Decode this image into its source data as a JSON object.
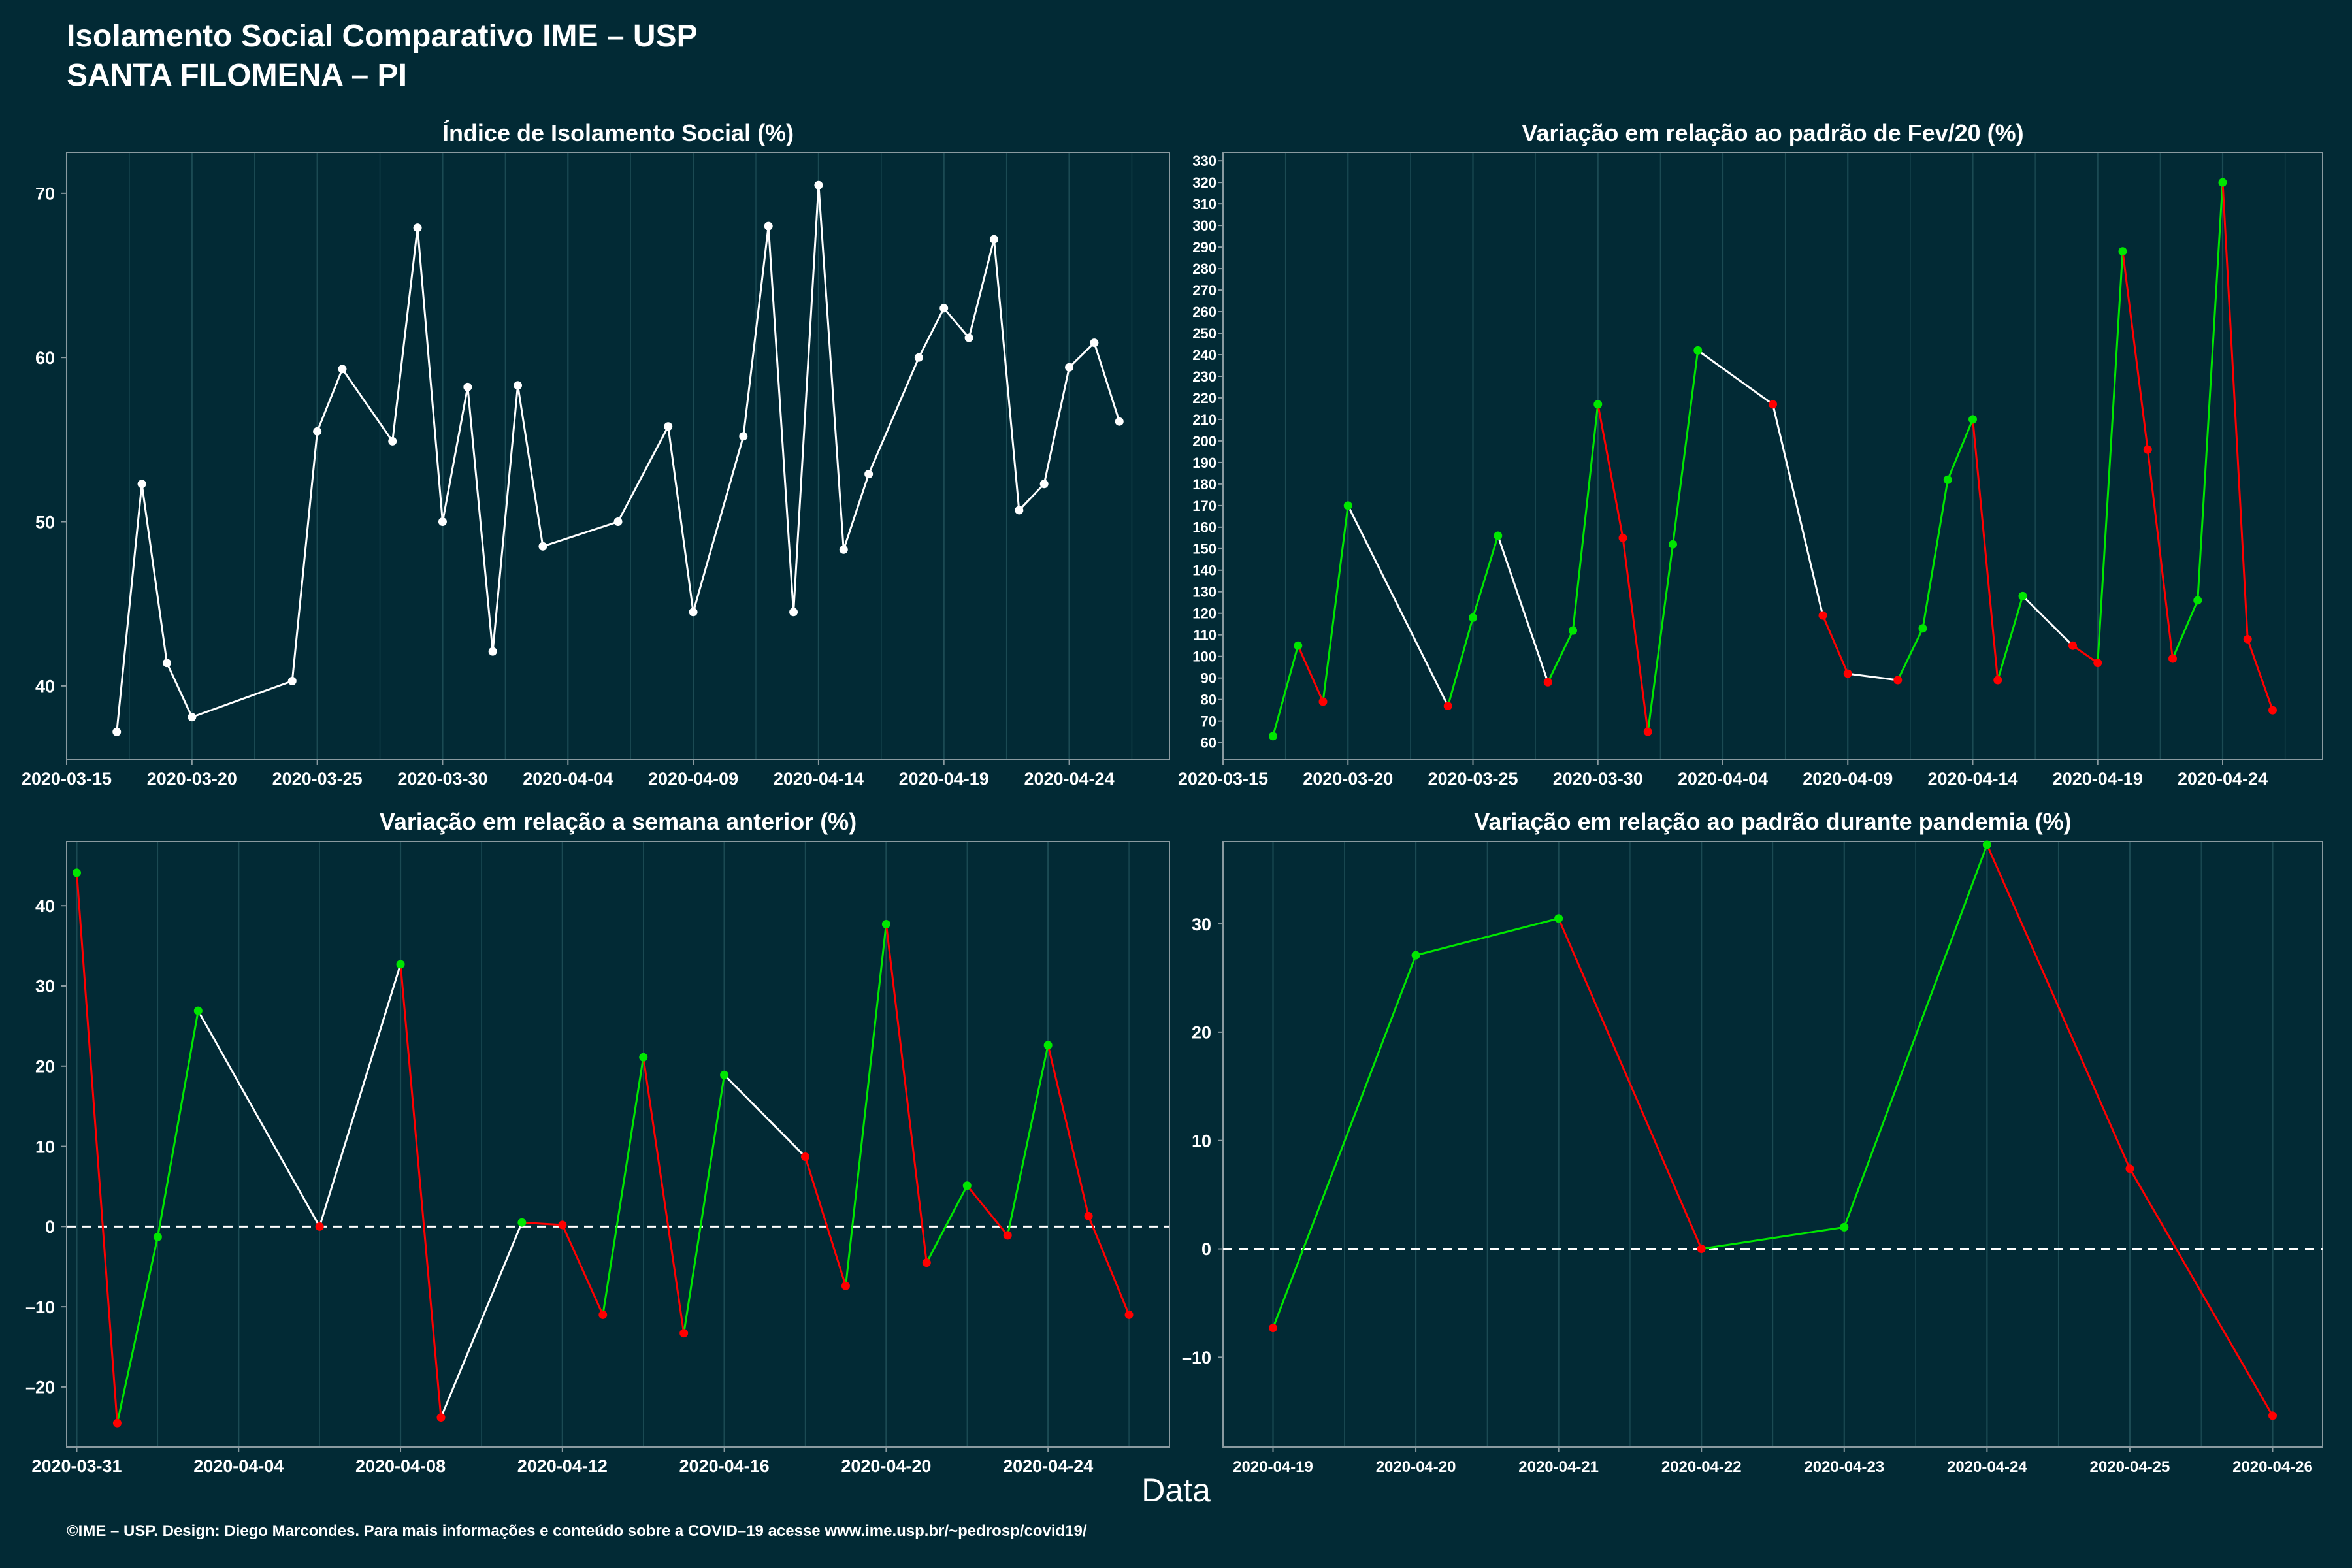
{
  "header": {
    "title_line1": "Isolamento Social Comparativo IME – USP",
    "title_line2": "SANTA FILOMENA – PI"
  },
  "xlabel": "Data",
  "caption": "©IME – USP. Design: Diego Marcondes. Para mais informações e conteúdo sobre a COVID–19 acesse www.ime.usp.br/~pedrosp/covid19/",
  "colors": {
    "background": "#022a35",
    "up": "#00e600",
    "down": "#ff0000",
    "neutral": "#ffffff",
    "grid": "#1b4a53",
    "frame": "#8a9aa0"
  },
  "chart_data": [
    {
      "type": "line",
      "title": "Índice de Isolamento Social (%)",
      "xlabel": "",
      "ylabel": "",
      "xlim": [
        "2020-03-15",
        "2020-04-28"
      ],
      "ylim": [
        35.5,
        72.5
      ],
      "xticks": [
        "2020-03-15",
        "2020-03-20",
        "2020-03-25",
        "2020-03-30",
        "2020-04-04",
        "2020-04-09",
        "2020-04-14",
        "2020-04-19",
        "2020-04-24"
      ],
      "yticks": [
        40,
        50,
        60,
        70
      ],
      "series": [
        {
          "points": [
            [
              "2020-03-17",
              37.2
            ],
            [
              "2020-03-18",
              52.3
            ],
            [
              "2020-03-19",
              41.4
            ],
            [
              "2020-03-20",
              38.1
            ],
            [
              "2020-03-24",
              40.3
            ],
            [
              "2020-03-25",
              55.5
            ],
            [
              "2020-03-26",
              59.3
            ],
            [
              "2020-03-28",
              54.9
            ],
            [
              "2020-03-29",
              67.9
            ],
            [
              "2020-03-30",
              50.0
            ],
            [
              "2020-03-31",
              58.2
            ],
            [
              "2020-04-01",
              42.1
            ],
            [
              "2020-04-02",
              58.3
            ],
            [
              "2020-04-03",
              48.5
            ],
            [
              "2020-04-06",
              50.0
            ],
            [
              "2020-04-08",
              55.8
            ],
            [
              "2020-04-09",
              44.5
            ],
            [
              "2020-04-11",
              55.2
            ],
            [
              "2020-04-12",
              68.0
            ],
            [
              "2020-04-13",
              44.5
            ],
            [
              "2020-04-14",
              70.5
            ],
            [
              "2020-04-15",
              48.3
            ],
            [
              "2020-04-16",
              52.9
            ],
            [
              "2020-04-18",
              60.0
            ],
            [
              "2020-04-19",
              63.0
            ],
            [
              "2020-04-20",
              61.2
            ],
            [
              "2020-04-21",
              67.2
            ],
            [
              "2020-04-22",
              50.7
            ],
            [
              "2020-04-23",
              52.3
            ],
            [
              "2020-04-24",
              59.4
            ],
            [
              "2020-04-25",
              60.9
            ],
            [
              "2020-04-26",
              56.1
            ]
          ]
        }
      ]
    },
    {
      "type": "line",
      "title": "Variação em relação ao padrão de Fev/20 (%)",
      "xlabel": "",
      "ylabel": "",
      "xlim": [
        "2020-03-15",
        "2020-04-28"
      ],
      "ylim": [
        52,
        334
      ],
      "xticks": [
        "2020-03-15",
        "2020-03-20",
        "2020-03-25",
        "2020-03-30",
        "2020-04-04",
        "2020-04-09",
        "2020-04-14",
        "2020-04-19",
        "2020-04-24"
      ],
      "yticks": [
        60,
        70,
        80,
        90,
        100,
        110,
        120,
        130,
        140,
        150,
        160,
        170,
        180,
        190,
        200,
        210,
        220,
        230,
        240,
        250,
        260,
        270,
        280,
        290,
        300,
        310,
        320,
        330
      ],
      "series": [
        {
          "points": [
            [
              "2020-03-17",
              63
            ],
            [
              "2020-03-18",
              105
            ],
            [
              "2020-03-19",
              79
            ],
            [
              "2020-03-20",
              170
            ],
            [
              "2020-03-24",
              77
            ],
            [
              "2020-03-25",
              118
            ],
            [
              "2020-03-26",
              156
            ],
            [
              "2020-03-28",
              88
            ],
            [
              "2020-03-29",
              112
            ],
            [
              "2020-03-30",
              217
            ],
            [
              "2020-03-31",
              155
            ],
            [
              "2020-04-01",
              65
            ],
            [
              "2020-04-02",
              152
            ],
            [
              "2020-04-03",
              242
            ],
            [
              "2020-04-06",
              217
            ],
            [
              "2020-04-08",
              119
            ],
            [
              "2020-04-09",
              92
            ],
            [
              "2020-04-11",
              89
            ],
            [
              "2020-04-12",
              113
            ],
            [
              "2020-04-13",
              182
            ],
            [
              "2020-04-14",
              210
            ],
            [
              "2020-04-15",
              89
            ],
            [
              "2020-04-16",
              128
            ],
            [
              "2020-04-18",
              105
            ],
            [
              "2020-04-19",
              97
            ],
            [
              "2020-04-20",
              288
            ],
            [
              "2020-04-21",
              196
            ],
            [
              "2020-04-22",
              99
            ],
            [
              "2020-04-23",
              126
            ],
            [
              "2020-04-24",
              320
            ],
            [
              "2020-04-25",
              108
            ],
            [
              "2020-04-26",
              75
            ]
          ]
        }
      ]
    },
    {
      "type": "line",
      "title": "Variação em relação a semana anterior (%)",
      "xlabel": "",
      "ylabel": "",
      "xlim": [
        "2020-03-30.75",
        "2020-04-27"
      ],
      "ylim": [
        -27.5,
        48
      ],
      "reference_line": 0,
      "xticks": [
        "2020-03-31",
        "2020-04-04",
        "2020-04-08",
        "2020-04-12",
        "2020-04-16",
        "2020-04-20",
        "2020-04-24"
      ],
      "yticks": [
        -20,
        -10,
        0,
        10,
        20,
        30,
        40
      ],
      "series": [
        {
          "points": [
            [
              "2020-03-31",
              44.1
            ],
            [
              "2020-04-01",
              -24.5
            ],
            [
              "2020-04-02",
              -1.3
            ],
            [
              "2020-04-03",
              26.9
            ],
            [
              "2020-04-06",
              0.0
            ],
            [
              "2020-04-08",
              32.7
            ],
            [
              "2020-04-09",
              -23.8
            ],
            [
              "2020-04-11",
              0.5
            ],
            [
              "2020-04-12",
              0.2
            ],
            [
              "2020-04-13",
              -11.0
            ],
            [
              "2020-04-14",
              21.1
            ],
            [
              "2020-04-15",
              -13.3
            ],
            [
              "2020-04-16",
              18.9
            ],
            [
              "2020-04-18",
              8.7
            ],
            [
              "2020-04-19",
              -7.4
            ],
            [
              "2020-04-20",
              37.7
            ],
            [
              "2020-04-21",
              -4.5
            ],
            [
              "2020-04-22",
              5.1
            ],
            [
              "2020-04-23",
              -1.1
            ],
            [
              "2020-04-24",
              22.6
            ],
            [
              "2020-04-25",
              1.3
            ],
            [
              "2020-04-26",
              -11.0
            ]
          ]
        }
      ]
    },
    {
      "type": "line",
      "title": "Variação em relação ao padrão durante pandemia (%)",
      "xlabel": "",
      "ylabel": "",
      "xlim": [
        "2020-04-18.65",
        "2020-04-26.35"
      ],
      "ylim": [
        -18.3,
        37.6
      ],
      "reference_line": 0,
      "xticks": [
        "2020-04-19",
        "2020-04-20",
        "2020-04-21",
        "2020-04-22",
        "2020-04-23",
        "2020-04-24",
        "2020-04-25",
        "2020-04-26"
      ],
      "yticks": [
        -10,
        0,
        10,
        20,
        30
      ],
      "series": [
        {
          "points": [
            [
              "2020-04-19",
              -7.3
            ],
            [
              "2020-04-20",
              27.1
            ],
            [
              "2020-04-21",
              30.5
            ],
            [
              "2020-04-22",
              0.0
            ],
            [
              "2020-04-23",
              2.0
            ],
            [
              "2020-04-24",
              37.3
            ],
            [
              "2020-04-25",
              7.4
            ],
            [
              "2020-04-26",
              -15.4
            ]
          ]
        }
      ]
    }
  ]
}
